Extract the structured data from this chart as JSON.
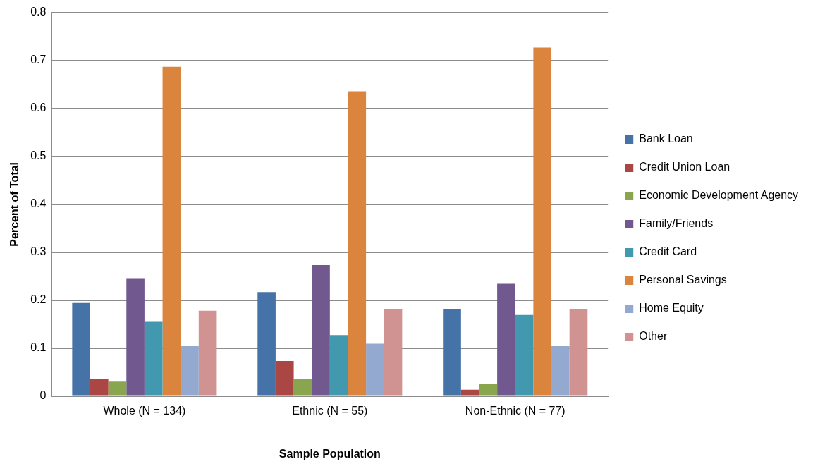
{
  "chart_data": {
    "type": "bar",
    "xlabel": "Sample Population",
    "ylabel": "Percent of Total",
    "categories": [
      "Whole (N = 134)",
      "Ethnic (N = 55)",
      "Non-Ethnic (N = 77)"
    ],
    "series": [
      {
        "name": "Bank Loan",
        "color": "#4572a7",
        "values": [
          0.194,
          0.217,
          0.182
        ]
      },
      {
        "name": "Credit Union Loan",
        "color": "#aa4643",
        "values": [
          0.036,
          0.073,
          0.013
        ]
      },
      {
        "name": "Economic Development Agency",
        "color": "#89a54e",
        "values": [
          0.03,
          0.036,
          0.026
        ]
      },
      {
        "name": "Family/Friends",
        "color": "#71588f",
        "values": [
          0.246,
          0.273,
          0.234
        ]
      },
      {
        "name": "Credit Card",
        "color": "#4198af",
        "values": [
          0.156,
          0.127,
          0.169
        ]
      },
      {
        "name": "Personal Savings",
        "color": "#db843d",
        "values": [
          0.687,
          0.636,
          0.727
        ]
      },
      {
        "name": "Home Equity",
        "color": "#93a9cf",
        "values": [
          0.104,
          0.109,
          0.104
        ]
      },
      {
        "name": "Other",
        "color": "#d19392",
        "values": [
          0.178,
          0.182,
          0.182
        ]
      }
    ],
    "ylim": [
      0,
      0.8
    ],
    "yticks": [
      0,
      0.1,
      0.2,
      0.3,
      0.4,
      0.5,
      0.6,
      0.7,
      0.8
    ],
    "grid": "y",
    "legend": "right"
  }
}
